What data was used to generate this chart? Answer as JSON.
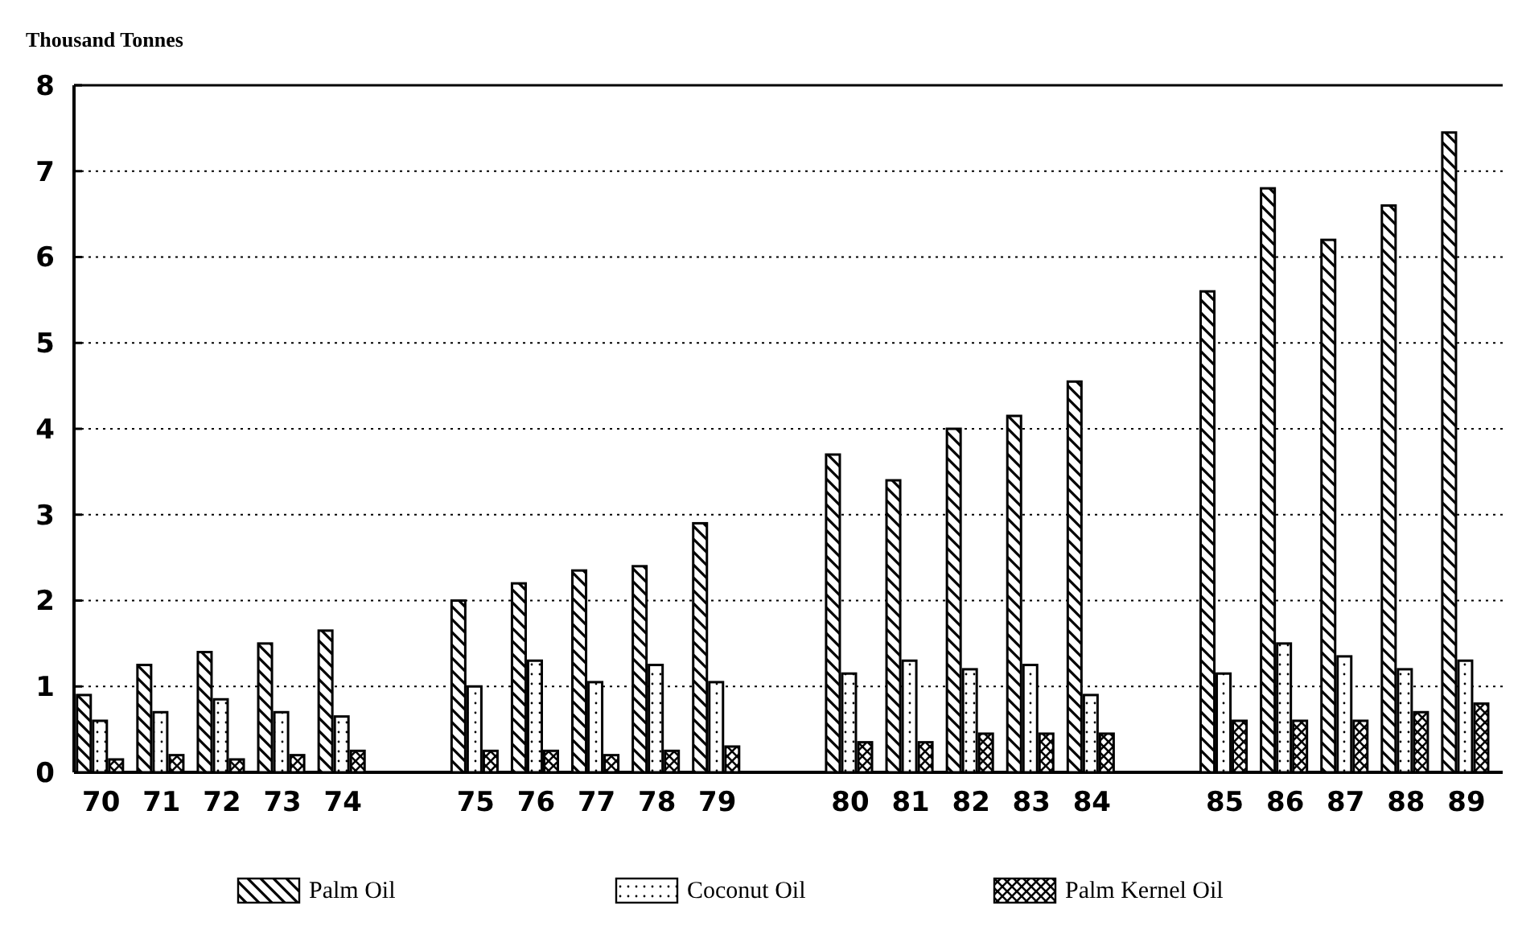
{
  "chart_data": {
    "type": "bar",
    "ylabel": "Thousand Tonnes",
    "categories": [
      "70",
      "71",
      "72",
      "73",
      "74",
      "75",
      "76",
      "77",
      "78",
      "79",
      "80",
      "81",
      "82",
      "83",
      "84",
      "85",
      "86",
      "87",
      "88",
      "89"
    ],
    "series": [
      {
        "name": "Palm Oil",
        "color": "#000000",
        "values": [
          0.9,
          1.25,
          1.4,
          1.5,
          1.65,
          2.0,
          2.2,
          2.35,
          2.4,
          2.9,
          3.7,
          3.4,
          4.0,
          4.15,
          4.55,
          5.6,
          6.8,
          6.2,
          6.6,
          7.45
        ]
      },
      {
        "name": "Coconut Oil",
        "color": "#000000",
        "values": [
          0.6,
          0.7,
          0.85,
          0.7,
          0.65,
          1.0,
          1.3,
          1.05,
          1.25,
          1.05,
          1.15,
          1.3,
          1.2,
          1.25,
          0.9,
          1.15,
          1.5,
          1.35,
          1.2,
          1.3
        ]
      },
      {
        "name": "Palm Kernel Oil",
        "color": "#000000",
        "values": [
          0.15,
          0.2,
          0.15,
          0.2,
          0.25,
          0.25,
          0.25,
          0.2,
          0.25,
          0.3,
          0.35,
          0.35,
          0.45,
          0.45,
          0.45,
          0.6,
          0.6,
          0.6,
          0.7,
          0.8
        ]
      }
    ],
    "ylim": [
      0,
      8
    ],
    "yticks": [
      0,
      1,
      2,
      3,
      4,
      5,
      6,
      7,
      8
    ],
    "grid": "y",
    "legend": "bottom"
  }
}
